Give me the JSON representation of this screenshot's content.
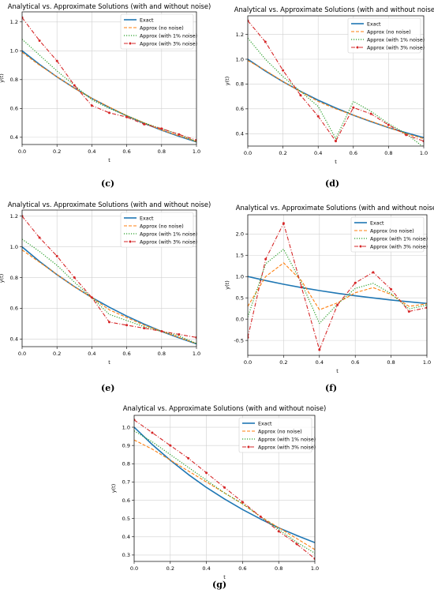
{
  "panels_caption": [
    "(c)",
    "(d)",
    "(e)",
    "(f)",
    "(g)"
  ],
  "chart_data": [
    {
      "id": "c",
      "type": "line",
      "title": "Analytical vs. Approximate Solutions (with and without noise)",
      "xlabel": "t",
      "ylabel": "y(t)",
      "xlim": [
        0,
        1
      ],
      "ylim": [
        0.35,
        1.27
      ],
      "xticks": [
        "0.0",
        "0.2",
        "0.4",
        "0.6",
        "0.8",
        "1.0"
      ],
      "yticks": [
        "0.4",
        "0.6",
        "0.8",
        "1.0",
        "1.2"
      ],
      "ytick_values": [
        0.4,
        0.6,
        0.8,
        1.0,
        1.2
      ],
      "grid": true,
      "legend": "top-right",
      "series": [
        {
          "name": "Exact",
          "style": "exact",
          "x": [
            0,
            0.1,
            0.2,
            0.3,
            0.4,
            0.5,
            0.6,
            0.7,
            0.8,
            0.9,
            1.0
          ],
          "y": [
            1.0,
            0.905,
            0.819,
            0.741,
            0.67,
            0.607,
            0.549,
            0.497,
            0.449,
            0.407,
            0.368
          ]
        },
        {
          "name": "Approx (no noise)",
          "style": "nonoise",
          "x": [
            0,
            0.1,
            0.2,
            0.3,
            0.4,
            0.5,
            0.6,
            0.7,
            0.8,
            0.9,
            1.0
          ],
          "y": [
            0.99,
            0.9,
            0.82,
            0.74,
            0.67,
            0.61,
            0.55,
            0.5,
            0.45,
            0.41,
            0.37
          ]
        },
        {
          "name": "Approx (with 1% noise)",
          "style": "noise1",
          "x": [
            0,
            0.1,
            0.2,
            0.3,
            0.4,
            0.5,
            0.6,
            0.7,
            0.8,
            0.9,
            1.0
          ],
          "y": [
            1.08,
            0.97,
            0.86,
            0.76,
            0.66,
            0.6,
            0.55,
            0.5,
            0.46,
            0.42,
            0.37
          ]
        },
        {
          "name": "Approx (with 3% noise)",
          "style": "noise3",
          "x": [
            0,
            0.1,
            0.2,
            0.3,
            0.4,
            0.5,
            0.6,
            0.7,
            0.8,
            0.9,
            1.0
          ],
          "y": [
            1.23,
            1.07,
            0.93,
            0.76,
            0.62,
            0.57,
            0.54,
            0.49,
            0.46,
            0.42,
            0.38
          ]
        }
      ]
    },
    {
      "id": "d",
      "type": "line",
      "title": "Analytical vs. Approximate Solutions (with and without noise)",
      "xlabel": "t",
      "ylabel": "y(t)",
      "xlim": [
        0,
        1
      ],
      "ylim": [
        0.3,
        1.35
      ],
      "xticks": [
        "0.0",
        "0.2",
        "0.4",
        "0.6",
        "0.8",
        "1.0"
      ],
      "yticks": [
        "0.4",
        "0.6",
        "0.8",
        "1.0",
        "1.2"
      ],
      "ytick_values": [
        0.4,
        0.6,
        0.8,
        1.0,
        1.2
      ],
      "grid": true,
      "legend": "top-right",
      "series": [
        {
          "name": "Exact",
          "style": "exact",
          "x": [
            0,
            0.1,
            0.2,
            0.3,
            0.4,
            0.5,
            0.6,
            0.7,
            0.8,
            0.9,
            1.0
          ],
          "y": [
            1.0,
            0.905,
            0.819,
            0.741,
            0.67,
            0.607,
            0.549,
            0.497,
            0.449,
            0.407,
            0.368
          ]
        },
        {
          "name": "Approx (no noise)",
          "style": "nonoise",
          "x": [
            0,
            0.1,
            0.2,
            0.3,
            0.4,
            0.5,
            0.6,
            0.7,
            0.8,
            0.9,
            1.0
          ],
          "y": [
            0.99,
            0.91,
            0.82,
            0.74,
            0.66,
            0.6,
            0.55,
            0.5,
            0.45,
            0.4,
            0.36
          ]
        },
        {
          "name": "Approx (with 1% noise)",
          "style": "noise1",
          "x": [
            0,
            0.1,
            0.2,
            0.3,
            0.4,
            0.5,
            0.6,
            0.7,
            0.8,
            0.9,
            1.0
          ],
          "y": [
            1.17,
            1.0,
            0.86,
            0.74,
            0.62,
            0.36,
            0.66,
            0.58,
            0.48,
            0.4,
            0.29
          ]
        },
        {
          "name": "Approx (with 3% noise)",
          "style": "noise3",
          "x": [
            0,
            0.1,
            0.2,
            0.3,
            0.4,
            0.5,
            0.6,
            0.7,
            0.8,
            0.9,
            1.0
          ],
          "y": [
            1.31,
            1.14,
            0.91,
            0.71,
            0.54,
            0.34,
            0.61,
            0.56,
            0.47,
            0.39,
            0.34
          ]
        }
      ]
    },
    {
      "id": "e",
      "type": "line",
      "title": "Analytical vs. Approximate Solutions (with and without noise)",
      "xlabel": "t",
      "ylabel": "y(t)",
      "xlim": [
        0,
        1
      ],
      "ylim": [
        0.35,
        1.24
      ],
      "xticks": [
        "0.0",
        "0.2",
        "0.4",
        "0.6",
        "0.8",
        "1.0"
      ],
      "yticks": [
        "0.4",
        "0.6",
        "0.8",
        "1.0",
        "1.2"
      ],
      "ytick_values": [
        0.4,
        0.6,
        0.8,
        1.0,
        1.2
      ],
      "grid": true,
      "legend": "top-right",
      "series": [
        {
          "name": "Exact",
          "style": "exact",
          "x": [
            0,
            0.1,
            0.2,
            0.3,
            0.4,
            0.5,
            0.6,
            0.7,
            0.8,
            0.9,
            1.0
          ],
          "y": [
            1.0,
            0.905,
            0.819,
            0.741,
            0.67,
            0.607,
            0.549,
            0.497,
            0.449,
            0.407,
            0.368
          ]
        },
        {
          "name": "Approx (no noise)",
          "style": "nonoise",
          "x": [
            0,
            0.1,
            0.2,
            0.3,
            0.4,
            0.5,
            0.6,
            0.7,
            0.8,
            0.9,
            1.0
          ],
          "y": [
            0.98,
            0.9,
            0.82,
            0.74,
            0.67,
            0.59,
            0.54,
            0.49,
            0.45,
            0.41,
            0.37
          ]
        },
        {
          "name": "Approx (with 1% noise)",
          "style": "noise1",
          "x": [
            0,
            0.1,
            0.2,
            0.3,
            0.4,
            0.5,
            0.6,
            0.7,
            0.8,
            0.9,
            1.0
          ],
          "y": [
            1.05,
            0.97,
            0.88,
            0.77,
            0.67,
            0.56,
            0.52,
            0.48,
            0.45,
            0.42,
            0.37
          ]
        },
        {
          "name": "Approx (with 3% noise)",
          "style": "noise3",
          "x": [
            0,
            0.1,
            0.2,
            0.3,
            0.4,
            0.5,
            0.6,
            0.7,
            0.8,
            0.9,
            1.0
          ],
          "y": [
            1.2,
            1.06,
            0.94,
            0.8,
            0.67,
            0.51,
            0.49,
            0.47,
            0.45,
            0.43,
            0.41
          ]
        }
      ]
    },
    {
      "id": "f",
      "type": "line",
      "title": "Analytical vs. Approximate Solutions (with and without noise)",
      "xlabel": "t",
      "ylabel": "y(t)",
      "xlim": [
        0,
        1
      ],
      "ylim": [
        -0.85,
        2.45
      ],
      "xticks": [
        "0.0",
        "0.2",
        "0.4",
        "0.6",
        "0.8",
        "1.0"
      ],
      "yticks": [
        "-0.5",
        "0.0",
        "0.5",
        "1.0",
        "1.5",
        "2.0"
      ],
      "ytick_values": [
        -0.5,
        0,
        0.5,
        1.0,
        1.5,
        2.0
      ],
      "grid": true,
      "legend": "top-right",
      "series": [
        {
          "name": "Exact",
          "style": "exact",
          "x": [
            0,
            0.1,
            0.2,
            0.3,
            0.4,
            0.5,
            0.6,
            0.7,
            0.8,
            0.9,
            1.0
          ],
          "y": [
            1.0,
            0.905,
            0.819,
            0.741,
            0.67,
            0.607,
            0.549,
            0.497,
            0.449,
            0.407,
            0.368
          ]
        },
        {
          "name": "Approx (no noise)",
          "style": "nonoise",
          "x": [
            0,
            0.1,
            0.2,
            0.3,
            0.4,
            0.5,
            0.6,
            0.7,
            0.8,
            0.9,
            1.0
          ],
          "y": [
            0.3,
            1.0,
            1.32,
            0.9,
            0.22,
            0.38,
            0.62,
            0.74,
            0.58,
            0.3,
            0.36
          ]
        },
        {
          "name": "Approx (with 1% noise)",
          "style": "noise1",
          "x": [
            0,
            0.1,
            0.2,
            0.3,
            0.4,
            0.5,
            0.6,
            0.7,
            0.8,
            0.9,
            1.0
          ],
          "y": [
            0.05,
            1.3,
            1.64,
            0.85,
            -0.1,
            0.35,
            0.72,
            0.84,
            0.6,
            0.24,
            0.33
          ]
        },
        {
          "name": "Approx (with 3% noise)",
          "style": "noise3",
          "x": [
            0,
            0.1,
            0.2,
            0.3,
            0.4,
            0.5,
            0.6,
            0.7,
            0.8,
            0.9,
            1.0
          ],
          "y": [
            -0.43,
            1.41,
            2.25,
            0.75,
            -0.72,
            0.33,
            0.85,
            1.1,
            0.7,
            0.18,
            0.27
          ]
        }
      ]
    },
    {
      "id": "g",
      "type": "line",
      "title": "Analytical vs. Approximate Solutions (with and without noise)",
      "xlabel": "t",
      "ylabel": "y(t)",
      "xlim": [
        0,
        1
      ],
      "ylim": [
        0.265,
        1.065
      ],
      "xticks": [
        "0.0",
        "0.2",
        "0.4",
        "0.6",
        "0.8",
        "1.0"
      ],
      "yticks": [
        "0.3",
        "0.4",
        "0.5",
        "0.6",
        "0.7",
        "0.8",
        "0.9",
        "1.0"
      ],
      "ytick_values": [
        0.3,
        0.4,
        0.5,
        0.6,
        0.7,
        0.8,
        0.9,
        1.0
      ],
      "grid": true,
      "legend": "top-right",
      "series": [
        {
          "name": "Exact",
          "style": "exact",
          "x": [
            0,
            0.1,
            0.2,
            0.3,
            0.4,
            0.5,
            0.6,
            0.7,
            0.8,
            0.9,
            1.0
          ],
          "y": [
            1.0,
            0.905,
            0.819,
            0.741,
            0.67,
            0.607,
            0.549,
            0.497,
            0.449,
            0.407,
            0.368
          ]
        },
        {
          "name": "Approx (no noise)",
          "style": "nonoise",
          "x": [
            0,
            0.1,
            0.2,
            0.3,
            0.4,
            0.5,
            0.6,
            0.7,
            0.8,
            0.9,
            1.0
          ],
          "y": [
            0.93,
            0.88,
            0.82,
            0.76,
            0.7,
            0.64,
            0.58,
            0.51,
            0.45,
            0.39,
            0.33
          ]
        },
        {
          "name": "Approx (with 1% noise)",
          "style": "noise1",
          "x": [
            0,
            0.1,
            0.2,
            0.3,
            0.4,
            0.5,
            0.6,
            0.7,
            0.8,
            0.9,
            1.0
          ],
          "y": [
            0.98,
            0.92,
            0.85,
            0.78,
            0.71,
            0.64,
            0.58,
            0.51,
            0.44,
            0.37,
            0.31
          ]
        },
        {
          "name": "Approx (with 3% noise)",
          "style": "noise3",
          "x": [
            0,
            0.1,
            0.2,
            0.3,
            0.4,
            0.5,
            0.6,
            0.7,
            0.8,
            0.9,
            1.0
          ],
          "y": [
            1.04,
            0.97,
            0.9,
            0.83,
            0.75,
            0.67,
            0.59,
            0.51,
            0.43,
            0.36,
            0.28
          ]
        }
      ]
    }
  ],
  "styles": {
    "exact": {
      "color": "#1f77b4",
      "dash": "",
      "width": 1.6,
      "marker": false
    },
    "nonoise": {
      "color": "#ff7f0e",
      "dash": "4,2",
      "width": 1.1,
      "marker": false
    },
    "noise1": {
      "color": "#2ca02c",
      "dash": "1.2,1.8",
      "width": 1.2,
      "marker": false
    },
    "noise3": {
      "color": "#d62728",
      "dash": "5,2,1,2",
      "width": 1.1,
      "marker": true
    }
  }
}
